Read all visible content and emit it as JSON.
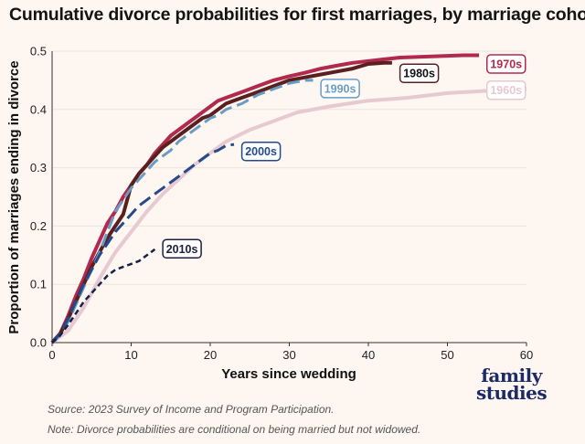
{
  "title": "Cumulative divorce probabilities for first marriages, by marriage cohort",
  "source": "Source: 2023 Survey of Income and Program Participation.",
  "note": "Note: Divorce probabilities are conditional on being married but not widowed.",
  "brand": {
    "line1": "family",
    "line2": "studies"
  },
  "chart_data": {
    "type": "line",
    "title": "Cumulative divorce probabilities for first marriages, by marriage cohort",
    "xlabel": "Years since wedding",
    "ylabel": "Proportion of marriages ending in divorce",
    "xlim": [
      0,
      60
    ],
    "ylim": [
      0,
      0.5
    ],
    "xticks": [
      0,
      10,
      20,
      30,
      40,
      50,
      60
    ],
    "yticks": [
      0.0,
      0.1,
      0.2,
      0.3,
      0.4,
      0.5
    ],
    "ytick_labels": [
      "0.0",
      "0.1",
      "0.2",
      "0.3",
      "0.4",
      "0.5"
    ],
    "grid": "horizontal",
    "series": [
      {
        "name": "1960s",
        "color": "#e6c9d1",
        "style": "solid",
        "x": [
          0,
          2,
          4,
          6,
          8,
          10,
          12,
          14,
          16,
          18,
          20,
          22,
          25,
          28,
          31,
          35,
          40,
          45,
          50,
          55,
          60
        ],
        "y": [
          0,
          0.02,
          0.06,
          0.11,
          0.155,
          0.19,
          0.225,
          0.255,
          0.28,
          0.305,
          0.325,
          0.345,
          0.365,
          0.38,
          0.395,
          0.405,
          0.415,
          0.42,
          0.428,
          0.432,
          0.435
        ]
      },
      {
        "name": "1970s",
        "color": "#b3294e",
        "style": "solid",
        "x": [
          0,
          1,
          2,
          3,
          4,
          5,
          6,
          7,
          8,
          9,
          10,
          11,
          12,
          13,
          14,
          15,
          16,
          17,
          18,
          19,
          20,
          21,
          22,
          24,
          26,
          28,
          30,
          32,
          34,
          36,
          38,
          40,
          42,
          44,
          46,
          48,
          50,
          52,
          54
        ],
        "y": [
          0,
          0.015,
          0.045,
          0.08,
          0.11,
          0.145,
          0.175,
          0.205,
          0.225,
          0.25,
          0.27,
          0.29,
          0.305,
          0.325,
          0.34,
          0.355,
          0.365,
          0.375,
          0.385,
          0.395,
          0.405,
          0.415,
          0.42,
          0.43,
          0.44,
          0.45,
          0.457,
          0.463,
          0.47,
          0.475,
          0.48,
          0.483,
          0.486,
          0.489,
          0.49,
          0.491,
          0.492,
          0.493,
          0.493
        ]
      },
      {
        "name": "1980s",
        "color": "#5a2020",
        "style": "solid",
        "x": [
          0,
          1,
          2,
          3,
          4,
          5,
          6,
          7,
          8,
          9,
          10,
          11,
          12,
          13,
          14,
          15,
          16,
          17,
          18,
          19,
          20,
          21,
          22,
          24,
          26,
          28,
          30,
          32,
          34,
          36,
          38,
          40,
          42,
          43
        ],
        "y": [
          0,
          0.015,
          0.04,
          0.07,
          0.1,
          0.13,
          0.155,
          0.18,
          0.2,
          0.22,
          0.27,
          0.29,
          0.305,
          0.32,
          0.335,
          0.345,
          0.355,
          0.365,
          0.375,
          0.385,
          0.39,
          0.4,
          0.41,
          0.42,
          0.43,
          0.44,
          0.45,
          0.455,
          0.46,
          0.465,
          0.47,
          0.478,
          0.48,
          0.48
        ]
      },
      {
        "name": "1990s",
        "color": "#6a9cc3",
        "style": "dashed",
        "x": [
          0,
          1,
          2,
          3,
          4,
          5,
          6,
          7,
          8,
          9,
          10,
          11,
          12,
          13,
          14,
          15,
          16,
          17,
          18,
          19,
          20,
          21,
          22,
          24,
          26,
          28,
          30,
          32,
          33
        ],
        "y": [
          0,
          0.012,
          0.035,
          0.065,
          0.095,
          0.125,
          0.155,
          0.19,
          0.225,
          0.245,
          0.265,
          0.28,
          0.295,
          0.31,
          0.32,
          0.33,
          0.345,
          0.355,
          0.365,
          0.375,
          0.385,
          0.39,
          0.4,
          0.41,
          0.425,
          0.435,
          0.445,
          0.45,
          0.45
        ]
      },
      {
        "name": "2000s",
        "color": "#254a8c",
        "style": "dashed",
        "x": [
          0,
          1,
          2,
          3,
          4,
          5,
          6,
          7,
          8,
          9,
          10,
          11,
          12,
          13,
          14,
          15,
          16,
          17,
          18,
          19,
          20,
          21,
          22,
          23
        ],
        "y": [
          0,
          0.015,
          0.04,
          0.07,
          0.1,
          0.125,
          0.15,
          0.17,
          0.19,
          0.205,
          0.22,
          0.235,
          0.245,
          0.255,
          0.265,
          0.275,
          0.285,
          0.295,
          0.305,
          0.315,
          0.325,
          0.33,
          0.338,
          0.34
        ]
      },
      {
        "name": "2010s",
        "color": "#1a1f44",
        "style": "dashed",
        "x": [
          0,
          1,
          2,
          3,
          4,
          5,
          6,
          7,
          8,
          9,
          10,
          11,
          12,
          13
        ],
        "y": [
          0,
          0.012,
          0.03,
          0.05,
          0.07,
          0.085,
          0.1,
          0.115,
          0.125,
          0.13,
          0.135,
          0.14,
          0.15,
          0.16
        ]
      }
    ],
    "labels": [
      {
        "text": "1970s",
        "color": "#b3294e",
        "border": "#b3294e",
        "fill": "#ffffff",
        "x": 55,
        "y": 0.478
      },
      {
        "text": "1980s",
        "color": "#111111",
        "border": "#5a2020",
        "fill": "#ffffff",
        "x": 44,
        "y": 0.462
      },
      {
        "text": "1960s",
        "color": "#e6c9d1",
        "border": "#e6c9d1",
        "fill": "#ffffff",
        "x": 55,
        "y": 0.433
      },
      {
        "text": "1990s",
        "color": "#6a9cc3",
        "border": "#6a9cc3",
        "fill": "#ffffff",
        "x": 34,
        "y": 0.436
      },
      {
        "text": "2000s",
        "color": "#254a8c",
        "border": "#254a8c",
        "fill": "#ffffff",
        "x": 24,
        "y": 0.328
      },
      {
        "text": "2010s",
        "color": "#1a1f44",
        "border": "#1a1f44",
        "fill": "#ffffff",
        "x": 14,
        "y": 0.161
      }
    ]
  }
}
